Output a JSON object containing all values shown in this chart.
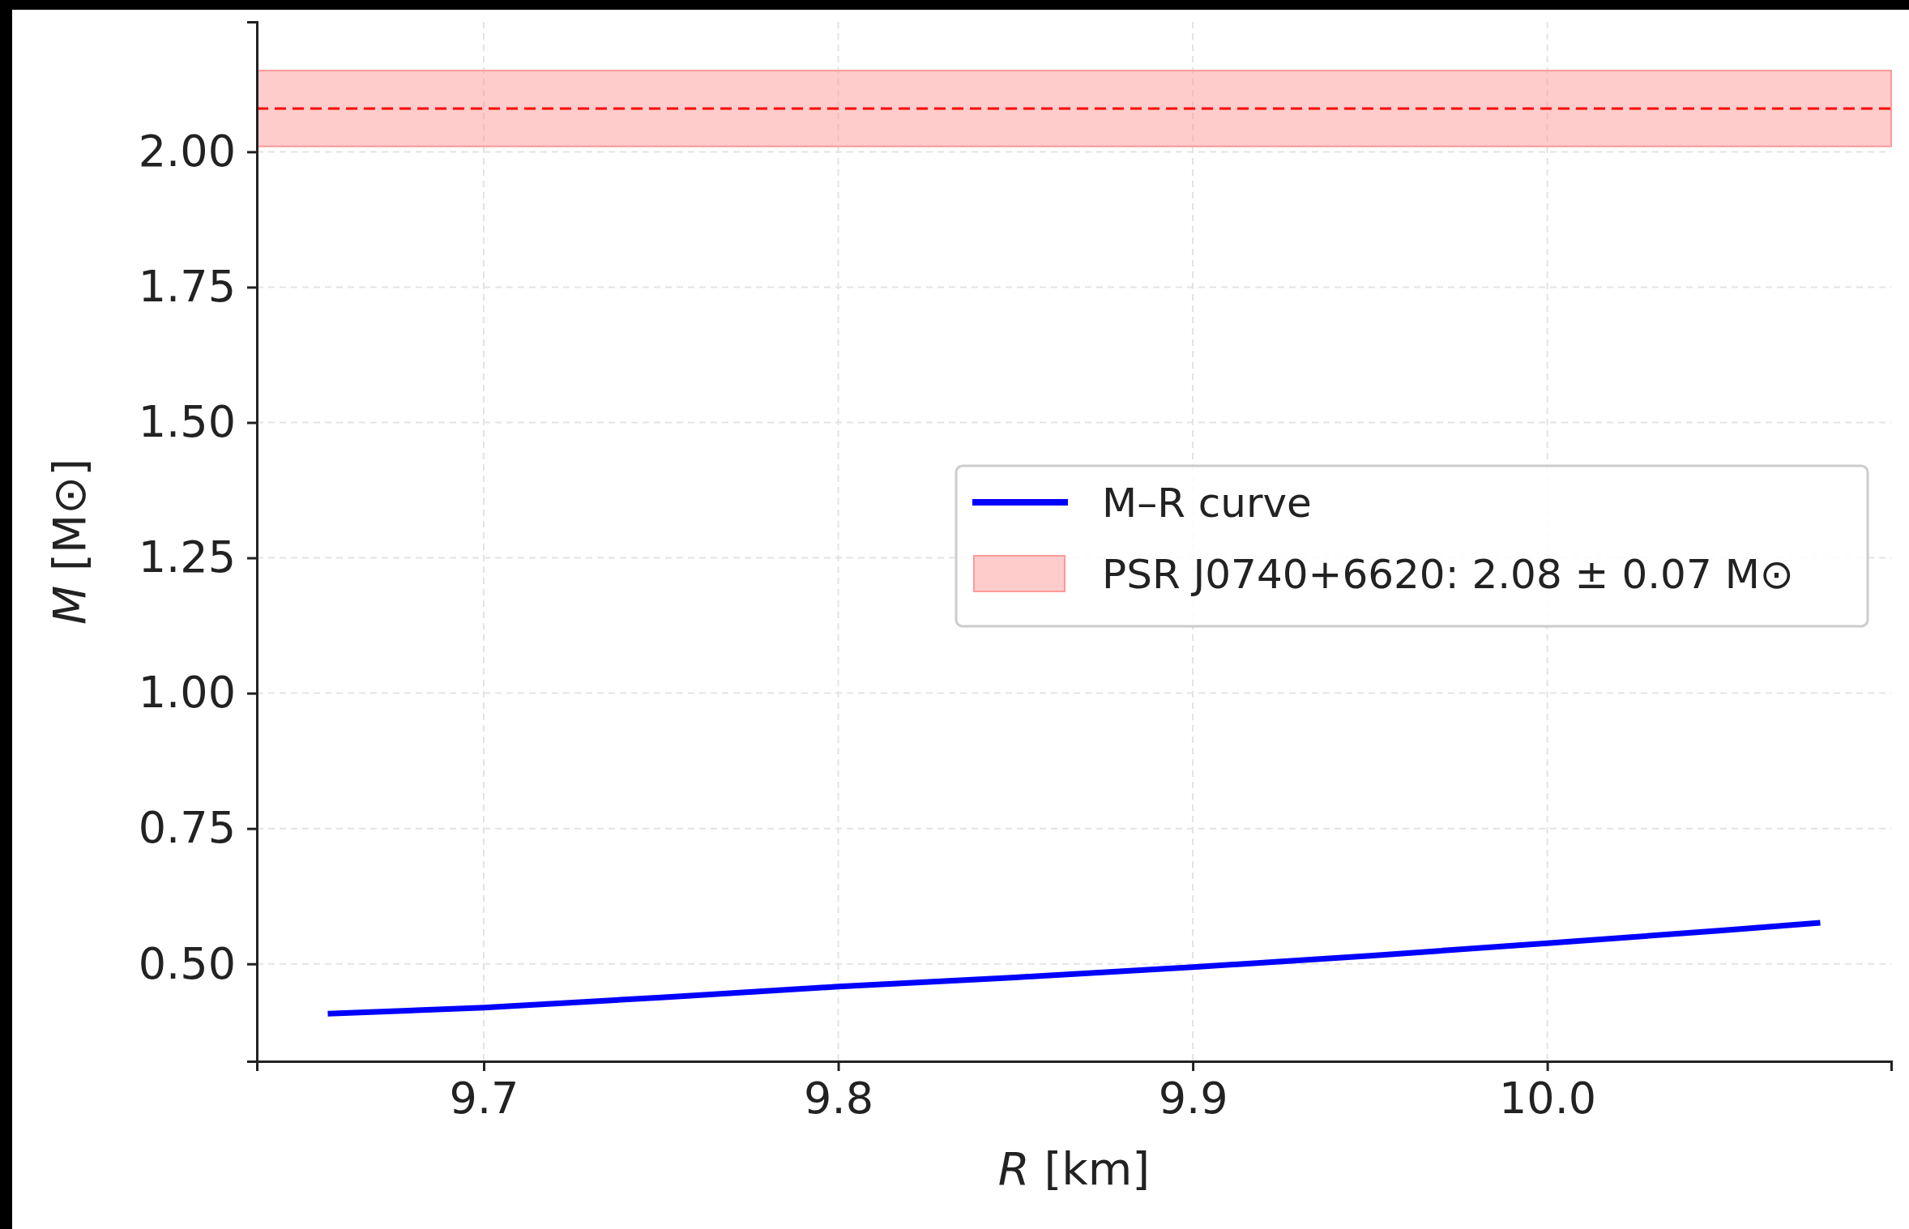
{
  "chart_data": {
    "type": "line",
    "xlabel": "R [km]",
    "ylabel": "M [M⊙]",
    "xlim": [
      9.636,
      10.097
    ],
    "ylim": [
      0.32,
      2.24
    ],
    "xticks": [
      9.7,
      9.8,
      9.9,
      {
        "value": 10,
        "label": "10.0"
      }
    ],
    "yticks": [
      {
        "value": 0.5,
        "label": "0.50"
      },
      {
        "value": 0.75,
        "label": "0.75"
      },
      {
        "value": 1,
        "label": "1.00"
      },
      {
        "value": 1.25,
        "label": "1.25"
      },
      {
        "value": 1.5,
        "label": "1.50"
      },
      {
        "value": 1.75,
        "label": "1.75"
      },
      {
        "value": 2,
        "label": "2.00"
      }
    ],
    "grid": true,
    "legend": "right",
    "line_style": "solid",
    "marker": "none",
    "series": [
      {
        "name": "M–R curve",
        "color": "#0000ff",
        "x": [
          9.656,
          9.7,
          9.75,
          9.8,
          9.85,
          9.9,
          9.95,
          10.0,
          10.05,
          10.077
        ],
        "values": [
          0.408,
          0.419,
          0.438,
          0.458,
          0.475,
          0.494,
          0.515,
          0.538,
          0.562,
          0.576
        ]
      }
    ],
    "bands": [
      {
        "axis": "y",
        "from": 2.01,
        "to": 2.15,
        "label": "PSR J0740+6620: 2.08 ± 0.07 M⊙",
        "color": "#ff9999"
      }
    ],
    "ref_lines": [
      {
        "axis": "y",
        "value": 2.08,
        "color": "#ff0000",
        "line_style": "dashed"
      }
    ]
  }
}
